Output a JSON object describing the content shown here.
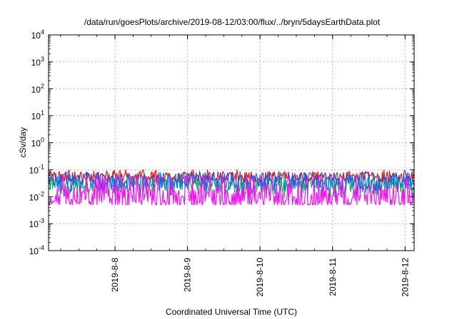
{
  "chart_data": {
    "type": "line",
    "title": "/data/run/goesPlots/archive/2019-08-12/03:00/flux/../bryn/5daysEarthData.plot",
    "xlabel": "Coordinated Universal Time (UTC)",
    "ylabel": "cSv/day",
    "yscale": "log",
    "ylim_exponents": [
      -4,
      4
    ],
    "y_tick_labels": [
      {
        "base": "10",
        "exp": "4"
      },
      {
        "base": "10",
        "exp": "3"
      },
      {
        "base": "10",
        "exp": "2"
      },
      {
        "base": "10",
        "exp": "1"
      },
      {
        "base": "10",
        "exp": "0"
      },
      {
        "base": "10",
        "exp": "-1"
      },
      {
        "base": "10",
        "exp": "-2"
      },
      {
        "base": "10",
        "exp": "-3"
      },
      {
        "base": "10",
        "exp": "-4"
      }
    ],
    "xlim": [
      "2019-08-07T02:00",
      "2019-08-12T03:00"
    ],
    "x_ticks": [
      {
        "label": "2019-8-8",
        "date": "2019-08-08T00:00"
      },
      {
        "label": "2019-8-9",
        "date": "2019-08-09T00:00"
      },
      {
        "label": "2019-8-10",
        "date": "2019-08-10T00:00"
      },
      {
        "label": "2019-8-11",
        "date": "2019-08-11T00:00"
      },
      {
        "label": "2019-8-12",
        "date": "2019-08-12T00:00"
      }
    ],
    "grid": true,
    "legend": "none",
    "series": [
      {
        "color": "#ff0000",
        "approx_range_log10": [
          -1.45,
          -1.0
        ],
        "approx_median": 0.055
      },
      {
        "color": "#00b050",
        "approx_range_log10": [
          -2.0,
          -1.3
        ],
        "approx_median": 0.03
      },
      {
        "color": "#0066ff",
        "approx_range_log10": [
          -1.8,
          -1.1
        ],
        "approx_median": 0.04
      },
      {
        "color": "#ff00ff",
        "approx_range_log10": [
          -2.3,
          -1.2
        ],
        "approx_median": 0.01
      }
    ]
  }
}
